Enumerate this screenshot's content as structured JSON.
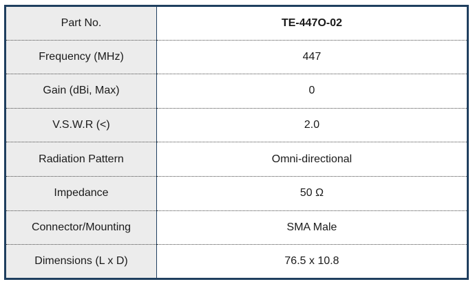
{
  "rows": [
    {
      "label": "Part No.",
      "value": "TE-447O-02"
    },
    {
      "label": "Frequency (MHz)",
      "value": "447"
    },
    {
      "label": "Gain (dBi, Max)",
      "value": "0"
    },
    {
      "label": "V.S.W.R (<)",
      "value": "2.0"
    },
    {
      "label": "Radiation Pattern",
      "value": "Omni-directional"
    },
    {
      "label": "Impedance",
      "value": "50 Ω"
    },
    {
      "label": "Connector/Mounting",
      "value": "SMA Male"
    },
    {
      "label": "Dimensions (L x D)",
      "value": "76.5 x 10.8"
    }
  ],
  "colors": {
    "border": "#1f3f5f",
    "label_bg": "#ececec",
    "value_bg": "#ffffff"
  }
}
